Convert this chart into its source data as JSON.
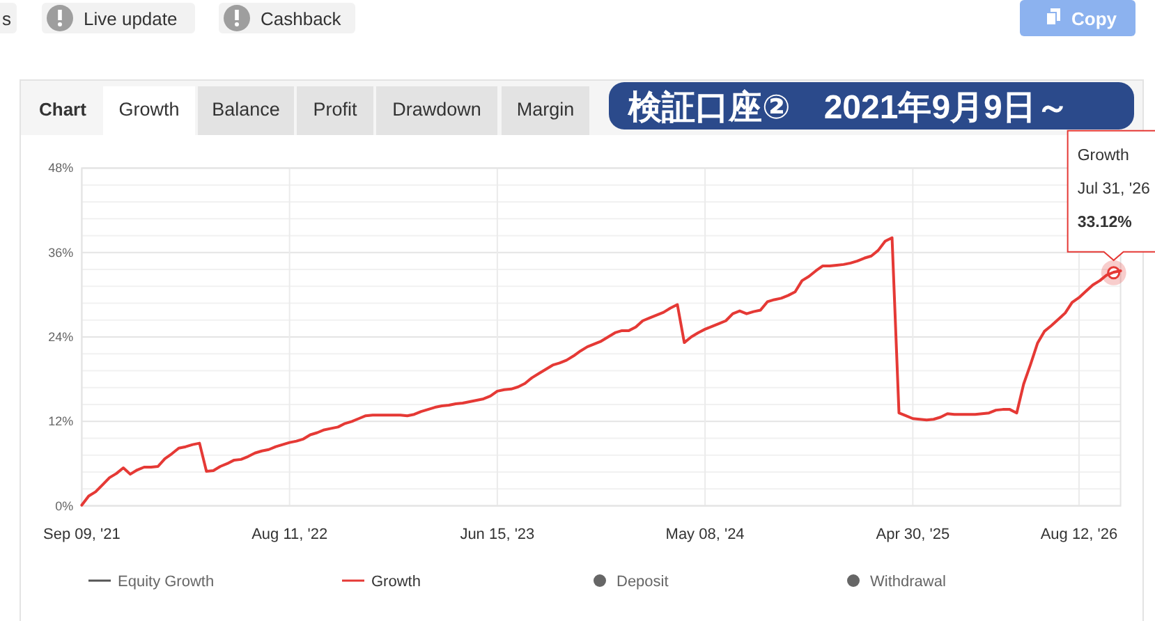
{
  "chart_data": {
    "type": "line",
    "title": "検証口座②　2021年9月9日～",
    "categories": [
      "Sep 09, '21",
      null,
      null,
      null,
      null,
      null,
      null,
      null,
      null,
      null,
      null,
      null,
      null,
      null,
      null,
      null,
      null,
      null,
      null,
      null,
      null,
      null,
      null,
      null,
      null,
      null,
      null,
      null,
      null,
      null,
      "Aug 11, '22",
      null,
      null,
      null,
      null,
      null,
      null,
      null,
      null,
      null,
      null,
      null,
      null,
      null,
      null,
      null,
      null,
      null,
      null,
      null,
      null,
      null,
      null,
      null,
      null,
      null,
      null,
      null,
      null,
      null,
      "Jun 15, '23",
      null,
      null,
      null,
      null,
      null,
      null,
      null,
      null,
      null,
      null,
      null,
      null,
      null,
      null,
      null,
      null,
      null,
      null,
      null,
      null,
      null,
      null,
      null,
      null,
      null,
      null,
      null,
      null,
      null,
      "May 08, '24",
      null,
      null,
      null,
      null,
      null,
      null,
      null,
      null,
      null,
      null,
      null,
      null,
      null,
      null,
      null,
      null,
      null,
      null,
      null,
      null,
      null,
      null,
      null,
      null,
      null,
      null,
      null,
      null,
      null,
      "Apr 30, '25",
      null,
      null,
      null,
      null,
      null,
      null,
      null,
      null,
      null,
      null,
      null,
      null,
      null,
      null,
      null,
      null,
      null,
      null,
      null,
      null,
      null,
      null,
      null,
      "Aug 12, '26",
      null,
      null,
      null,
      null,
      null,
      null
    ],
    "series": [
      {
        "name": "Equity Growth",
        "color": "#555555",
        "values": [
          null,
          null,
          null,
          null,
          null,
          null,
          null,
          null,
          null,
          null,
          null,
          null,
          null,
          null,
          null,
          null,
          null,
          null,
          null,
          null,
          null,
          null,
          null,
          null,
          null,
          null,
          null,
          null,
          null,
          null,
          null,
          null,
          null,
          null,
          null,
          null,
          null,
          null,
          null,
          null,
          null,
          null,
          null,
          null,
          null,
          null,
          null,
          null,
          null,
          null,
          null,
          null,
          null,
          null,
          null,
          null,
          null,
          null,
          null,
          null,
          null,
          null,
          null,
          null,
          null,
          null,
          null,
          null,
          null,
          null,
          null,
          null,
          null,
          null,
          null,
          null,
          null,
          null,
          null,
          null,
          null,
          null,
          null,
          null,
          null,
          null,
          null,
          null,
          null,
          null,
          null,
          null,
          null,
          null,
          null,
          null,
          null,
          null,
          null,
          null,
          null,
          null,
          null,
          null,
          null,
          null,
          null,
          null,
          null,
          null,
          null,
          null,
          null,
          null,
          null,
          null,
          null,
          null,
          null,
          null,
          null,
          null,
          null,
          null,
          null,
          null,
          null,
          null,
          null,
          null,
          null,
          null,
          null,
          null,
          null,
          null,
          null,
          null,
          null,
          null,
          null,
          null,
          null,
          null,
          null,
          null,
          null,
          null,
          null,
          null,
          null
        ]
      },
      {
        "name": "Growth",
        "color": "#e53935",
        "values": [
          0.1,
          1.4,
          2.0,
          3.0,
          4.0,
          4.6,
          5.4,
          4.5,
          5.1,
          5.5,
          5.5,
          5.6,
          6.7,
          7.4,
          8.2,
          8.4,
          8.7,
          8.9,
          4.9,
          5.0,
          5.6,
          6.0,
          6.5,
          6.6,
          7.0,
          7.5,
          7.8,
          8.0,
          8.4,
          8.7,
          9.0,
          9.2,
          9.5,
          10.1,
          10.4,
          10.8,
          11.0,
          11.2,
          11.7,
          12.0,
          12.4,
          12.8,
          12.9,
          12.9,
          12.9,
          12.9,
          12.9,
          12.8,
          13.0,
          13.4,
          13.7,
          14.0,
          14.2,
          14.3,
          14.5,
          14.6,
          14.8,
          15.0,
          15.2,
          15.6,
          16.3,
          16.5,
          16.6,
          16.9,
          17.4,
          18.2,
          18.8,
          19.4,
          20.0,
          20.3,
          20.7,
          21.3,
          22.0,
          22.6,
          23.0,
          23.4,
          24.0,
          24.6,
          24.9,
          24.9,
          25.4,
          26.3,
          26.7,
          27.1,
          27.5,
          28.1,
          28.6,
          23.2,
          24.0,
          24.6,
          25.1,
          25.5,
          25.9,
          26.3,
          27.3,
          27.7,
          27.3,
          27.6,
          27.8,
          29.0,
          29.3,
          29.5,
          29.9,
          30.4,
          32.0,
          32.6,
          33.4,
          34.1,
          34.1,
          34.2,
          34.3,
          34.5,
          34.8,
          35.2,
          35.5,
          36.3,
          37.6,
          38.1,
          13.2,
          12.8,
          12.4,
          12.3,
          12.2,
          12.3,
          12.6,
          13.1,
          13.0,
          13.0,
          13.0,
          13.0,
          13.1,
          13.2,
          13.6,
          13.7,
          13.7,
          13.2,
          17.3,
          20.1,
          23.1,
          24.8,
          25.6,
          26.5,
          27.4,
          28.9,
          29.6,
          30.5,
          31.4,
          32.0,
          32.8,
          33.2,
          33.4
        ]
      },
      {
        "name": "Deposit",
        "type": "scatter",
        "color": "#666666",
        "values": [
          null,
          null,
          null,
          null,
          null,
          null,
          null,
          null,
          null,
          null,
          null,
          null,
          null,
          null,
          null,
          null,
          null,
          null,
          null,
          null,
          null,
          null,
          null,
          null,
          null,
          null,
          null,
          null,
          null,
          null,
          null,
          null,
          null,
          null,
          null,
          null,
          null,
          null,
          null,
          null,
          null,
          null,
          null,
          null,
          null,
          null,
          null,
          null,
          null,
          null,
          null,
          null,
          null,
          null,
          null,
          null,
          null,
          null,
          null,
          null,
          null,
          null,
          null,
          null,
          null,
          null,
          null,
          null,
          null,
          null,
          null,
          null,
          null,
          null,
          null,
          null,
          null,
          null,
          null,
          null,
          null,
          null,
          null,
          null,
          null,
          null,
          null,
          null,
          null,
          null,
          null,
          null,
          null,
          null,
          null,
          null,
          null,
          null,
          null,
          null,
          null,
          null,
          null,
          null,
          null,
          null,
          null,
          null,
          null,
          null,
          null,
          null,
          null,
          null,
          null,
          null,
          null,
          null,
          null,
          null,
          null,
          null,
          null,
          null,
          null,
          null,
          null,
          null,
          null,
          null,
          null,
          null,
          null,
          null,
          null,
          null,
          null,
          null,
          null,
          null,
          null,
          null,
          null,
          null,
          null,
          null,
          null,
          null,
          null,
          null,
          null
        ]
      },
      {
        "name": "Withdrawal",
        "type": "scatter",
        "color": "#666666",
        "values": [
          null,
          null,
          null,
          null,
          null,
          null,
          null,
          null,
          null,
          null,
          null,
          null,
          null,
          null,
          null,
          null,
          null,
          null,
          null,
          null,
          null,
          null,
          null,
          null,
          null,
          null,
          null,
          null,
          null,
          null,
          null,
          null,
          null,
          null,
          null,
          null,
          null,
          null,
          null,
          null,
          null,
          null,
          null,
          null,
          null,
          null,
          null,
          null,
          null,
          null,
          null,
          null,
          null,
          null,
          null,
          null,
          null,
          null,
          null,
          null,
          null,
          null,
          null,
          null,
          null,
          null,
          null,
          null,
          null,
          null,
          null,
          null,
          null,
          null,
          null,
          null,
          null,
          null,
          null,
          null,
          null,
          null,
          null,
          null,
          null,
          null,
          null,
          null,
          null,
          null,
          null,
          null,
          null,
          null,
          null,
          null,
          null,
          null,
          null,
          null,
          null,
          null,
          null,
          null,
          null,
          null,
          null,
          null,
          null,
          null,
          null,
          null,
          null,
          null,
          null,
          null,
          null,
          null,
          null,
          null,
          null,
          null,
          null,
          null,
          null,
          null,
          null,
          null,
          null,
          null,
          null,
          null,
          null,
          null,
          null,
          null,
          null,
          null,
          null,
          null,
          null,
          null,
          null,
          null,
          null,
          null,
          null,
          null,
          null,
          null,
          null
        ]
      }
    ],
    "ylim": [
      0,
      48
    ],
    "yticks": [
      {
        "value": 0,
        "label": "0%"
      },
      {
        "value": 2.4,
        "label": null
      },
      {
        "value": 4.8,
        "label": null
      },
      {
        "value": 7.2,
        "label": null
      },
      {
        "value": 9.6,
        "label": null
      },
      {
        "value": 12,
        "label": "12%"
      },
      {
        "value": 14.4,
        "label": null
      },
      {
        "value": 16.8,
        "label": null
      },
      {
        "value": 19.2,
        "label": null
      },
      {
        "value": 21.6,
        "label": null
      },
      {
        "value": 24,
        "label": "24%"
      },
      {
        "value": 26.4,
        "label": null
      },
      {
        "value": 28.8,
        "label": null
      },
      {
        "value": 31.2,
        "label": null
      },
      {
        "value": 33.6,
        "label": null
      },
      {
        "value": 36,
        "label": "36%"
      },
      {
        "value": 38.4,
        "label": null
      },
      {
        "value": 40.8,
        "label": null
      },
      {
        "value": 43.2,
        "label": null
      },
      {
        "value": 45.6,
        "label": null
      },
      {
        "value": 48,
        "label": "48%"
      }
    ],
    "grid": true,
    "legend": "bottom",
    "line_style": "solid",
    "annotations": [
      "s",
      "Live update",
      "Cashback",
      "Copy",
      "Chart",
      "Growth",
      "Balance",
      "Profit",
      "Drawdown",
      "Margin",
      {
        "text": "Growth\nJul 31, '26\n**33.12%**",
        "y": 33.12
      }
    ]
  }
}
